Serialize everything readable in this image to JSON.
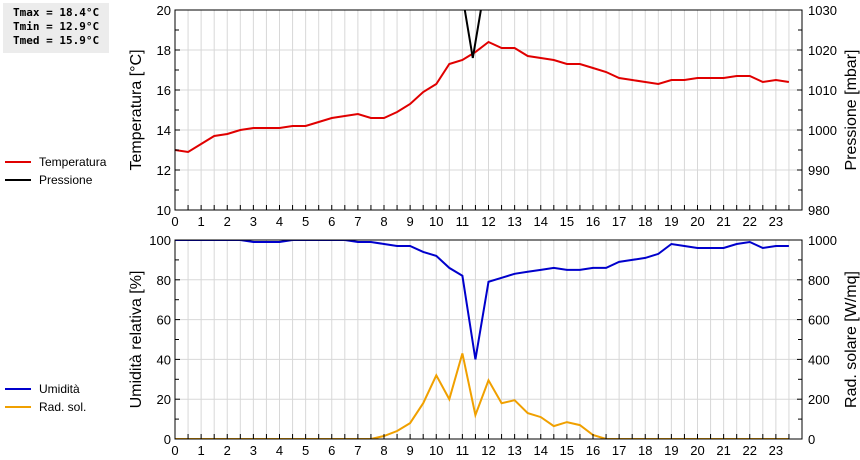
{
  "stats": {
    "tmax": "Tmax = 18.4°C",
    "tmin": "Tmin = 12.9°C",
    "tmed": "Tmed = 15.9°C"
  },
  "legend_top": [
    {
      "label": "Temperatura",
      "color": "#e00000"
    },
    {
      "label": "Pressione",
      "color": "#000000"
    }
  ],
  "legend_bottom": [
    {
      "label": "Umidità",
      "color": "#0000cc"
    },
    {
      "label": "Rad. sol.",
      "color": "#f0a000"
    }
  ],
  "chart_data": [
    {
      "type": "line",
      "title": "",
      "xlabel": "",
      "ylabel": "Temperatura [°C]",
      "ylabel_right": "Pressione [mbar]",
      "xlim": [
        0,
        24
      ],
      "ylim": [
        10,
        20
      ],
      "ylim_right": [
        980,
        1030
      ],
      "x_ticks": [
        "0",
        "1",
        "2",
        "3",
        "4",
        "5",
        "6",
        "7",
        "8",
        "9",
        "10",
        "11",
        "12",
        "13",
        "14",
        "15",
        "16",
        "17",
        "18",
        "19",
        "20",
        "21",
        "22",
        "23"
      ],
      "y_ticks": [
        "10",
        "12",
        "14",
        "16",
        "18",
        "20"
      ],
      "y_ticks_right": [
        "980",
        "990",
        "1000",
        "1010",
        "1020",
        "1030"
      ],
      "grid": true,
      "legend_position": "left",
      "x": [
        0,
        0.5,
        1,
        1.5,
        2,
        2.5,
        3,
        3.5,
        4,
        4.5,
        5,
        5.5,
        6,
        6.5,
        7,
        7.5,
        8,
        8.5,
        9,
        9.5,
        10,
        10.5,
        11,
        11.5,
        12,
        12.5,
        13,
        13.5,
        14,
        14.5,
        15,
        15.5,
        16,
        16.5,
        17,
        17.5,
        18,
        18.5,
        19,
        19.5,
        20,
        20.5,
        21,
        21.5,
        22,
        22.5,
        23,
        23.5
      ],
      "series": [
        {
          "name": "Temperatura",
          "axis": "left",
          "color": "#e00000",
          "values": [
            13.0,
            12.9,
            13.3,
            13.7,
            13.8,
            14.0,
            14.1,
            14.1,
            14.1,
            14.2,
            14.2,
            14.4,
            14.6,
            14.7,
            14.8,
            14.6,
            14.6,
            14.9,
            15.3,
            15.9,
            16.3,
            17.3,
            17.5,
            17.9,
            18.4,
            18.1,
            18.1,
            17.7,
            17.6,
            17.5,
            17.3,
            17.3,
            17.1,
            16.9,
            16.6,
            16.5,
            16.4,
            16.3,
            16.5,
            16.5,
            16.6,
            16.6,
            16.6,
            16.7,
            16.7,
            16.4,
            16.5,
            16.4
          ]
        },
        {
          "name": "Pressione",
          "axis": "right",
          "color": "#000000",
          "x": [
            10.9,
            11.4,
            11.9
          ],
          "values": [
            1030,
            1018,
            1030
          ],
          "note": "line outside visible range (>1030) except a dip near 11.4h"
        }
      ]
    },
    {
      "type": "line",
      "title": "",
      "xlabel": "",
      "ylabel": "Umidità relativa [%]",
      "ylabel_right": "Rad. solare [W/mq]",
      "xlim": [
        0,
        24
      ],
      "ylim": [
        0,
        100
      ],
      "ylim_right": [
        0,
        1000
      ],
      "x_ticks": [
        "0",
        "1",
        "2",
        "3",
        "4",
        "5",
        "6",
        "7",
        "8",
        "9",
        "10",
        "11",
        "12",
        "13",
        "14",
        "15",
        "16",
        "17",
        "18",
        "19",
        "20",
        "21",
        "22",
        "23"
      ],
      "y_ticks": [
        "0",
        "20",
        "40",
        "60",
        "80",
        "100"
      ],
      "y_ticks_right": [
        "0",
        "200",
        "400",
        "600",
        "800",
        "1000"
      ],
      "grid": true,
      "legend_position": "left",
      "x": [
        0,
        0.5,
        1,
        1.5,
        2,
        2.5,
        3,
        3.5,
        4,
        4.5,
        5,
        5.5,
        6,
        6.5,
        7,
        7.5,
        8,
        8.5,
        9,
        9.5,
        10,
        10.5,
        11,
        11.5,
        12,
        12.5,
        13,
        13.5,
        14,
        14.5,
        15,
        15.5,
        16,
        16.5,
        17,
        17.5,
        18,
        18.5,
        19,
        19.5,
        20,
        20.5,
        21,
        21.5,
        22,
        22.5,
        23,
        23.5
      ],
      "series": [
        {
          "name": "Umidità",
          "axis": "left",
          "color": "#0000cc",
          "values": [
            100,
            100,
            100,
            100,
            100,
            100,
            99,
            99,
            99,
            100,
            100,
            100,
            100,
            100,
            99,
            99,
            98,
            97,
            97,
            94,
            92,
            86,
            82,
            40,
            79,
            81,
            83,
            84,
            85,
            86,
            85,
            85,
            86,
            86,
            89,
            90,
            91,
            93,
            98,
            97,
            96,
            96,
            96,
            98,
            99,
            96,
            97,
            97
          ]
        },
        {
          "name": "Rad. sol.",
          "axis": "right",
          "color": "#f0a000",
          "values": [
            0,
            0,
            0,
            0,
            0,
            0,
            0,
            0,
            0,
            0,
            0,
            0,
            0,
            0,
            0,
            0,
            15,
            40,
            80,
            180,
            320,
            200,
            430,
            120,
            295,
            180,
            195,
            130,
            110,
            65,
            85,
            70,
            20,
            0,
            0,
            0,
            0,
            0,
            0,
            0,
            0,
            0,
            0,
            0,
            0,
            0,
            0,
            0
          ]
        }
      ]
    }
  ]
}
